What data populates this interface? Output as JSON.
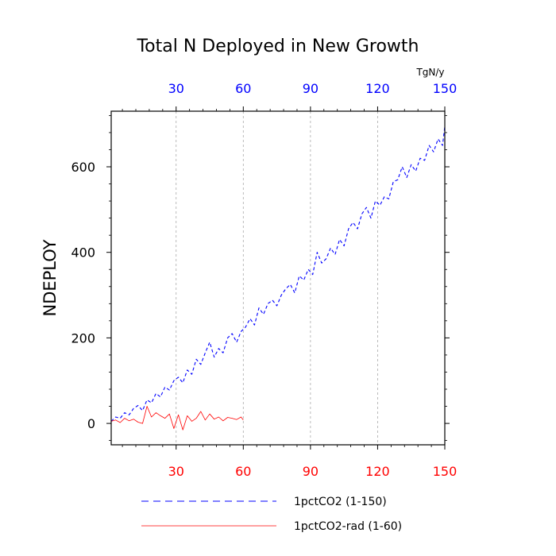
{
  "chart_data": {
    "type": "line",
    "title": "Total N Deployed in New Growth",
    "ylabel": "NDEPLOY",
    "units": "TgN/y",
    "xlim": [
      1,
      150
    ],
    "ylim": [
      -50,
      730
    ],
    "grid": "vertical dashed at x ticks",
    "legend": "bottom",
    "x_ticks": [
      30,
      60,
      90,
      120,
      150
    ],
    "y_ticks": [
      0,
      200,
      400,
      600
    ],
    "x_tick_labels_top": [
      "30",
      "60",
      "90",
      "120",
      "150"
    ],
    "x_tick_labels_bottom": [
      "30",
      "60",
      "90",
      "120",
      "150"
    ],
    "y_tick_labels": [
      "0",
      "200",
      "400",
      "600"
    ],
    "colors": {
      "top_axis_labels": "#0000ff",
      "bottom_axis_labels": "#ff0000",
      "series_1": "#0000ff",
      "series_2": "#ff0000"
    },
    "series": [
      {
        "name": "1pctCO2 (1-150)",
        "color": "#0000ff",
        "dash": "dashed",
        "x": [
          1,
          3,
          5,
          7,
          9,
          11,
          13,
          15,
          17,
          19,
          21,
          23,
          25,
          27,
          29,
          31,
          33,
          35,
          37,
          39,
          41,
          43,
          45,
          47,
          49,
          51,
          53,
          55,
          57,
          59,
          61,
          63,
          65,
          67,
          69,
          71,
          73,
          75,
          77,
          79,
          81,
          83,
          85,
          87,
          89,
          91,
          93,
          95,
          97,
          99,
          101,
          103,
          105,
          107,
          109,
          111,
          113,
          115,
          117,
          119,
          121,
          123,
          125,
          127,
          129,
          131,
          133,
          135,
          137,
          139,
          141,
          143,
          145,
          147,
          149,
          150
        ],
        "y": [
          5,
          15,
          12,
          25,
          20,
          35,
          42,
          30,
          55,
          48,
          70,
          62,
          85,
          78,
          100,
          108,
          95,
          125,
          115,
          150,
          138,
          165,
          190,
          155,
          175,
          165,
          200,
          210,
          190,
          215,
          225,
          245,
          230,
          270,
          255,
          280,
          288,
          275,
          300,
          315,
          325,
          305,
          345,
          335,
          360,
          348,
          400,
          375,
          385,
          410,
          395,
          430,
          415,
          455,
          470,
          455,
          490,
          505,
          480,
          520,
          510,
          530,
          525,
          565,
          570,
          600,
          575,
          605,
          590,
          620,
          615,
          650,
          635,
          665,
          650,
          695
        ]
      },
      {
        "name": "1pctCO2-rad (1-60)",
        "color": "#ff0000",
        "dash": "solid",
        "x": [
          1,
          3,
          5,
          7,
          9,
          11,
          13,
          15,
          17,
          19,
          21,
          23,
          25,
          27,
          29,
          31,
          33,
          35,
          37,
          39,
          41,
          43,
          45,
          47,
          49,
          51,
          53,
          55,
          57,
          59,
          60
        ],
        "y": [
          5,
          8,
          2,
          12,
          6,
          10,
          3,
          0,
          40,
          15,
          25,
          18,
          12,
          22,
          -12,
          20,
          -15,
          18,
          5,
          12,
          28,
          8,
          22,
          10,
          15,
          6,
          14,
          12,
          9,
          15,
          8
        ]
      }
    ]
  }
}
